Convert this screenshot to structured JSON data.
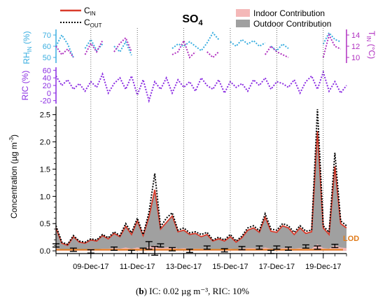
{
  "figure": {
    "title": "SO",
    "title_sub": "4",
    "caption_letter": "b",
    "caption_text": "IC: 0.02 µg m⁻³, RIC: 10%"
  },
  "legend_left": {
    "c_in_main": "C",
    "c_in_sub": "IN",
    "c_out_main": "C",
    "c_out_sub": "OUT",
    "c_in_color": "#d93b2b",
    "c_out_color": "#000000"
  },
  "legend_right": {
    "indoor_label": "Indoor Contribution",
    "outdoor_label": "Outdoor Contribution",
    "indoor_color": "#f4b8b8",
    "outdoor_color": "#a0a0a0"
  },
  "rh_panel": {
    "ylabel_main": "RH",
    "ylabel_sub": "IN",
    "ylabel_unit": " (%)",
    "ticks": [
      "70",
      "60",
      "50"
    ],
    "color": "#3aaee0",
    "right_label_main": "T",
    "right_label_sub": "IN",
    "right_label_unit": " (°C)",
    "right_ticks": [
      "14",
      "12",
      "10"
    ],
    "right_color": "#b030c0"
  },
  "ric_panel": {
    "ylabel": "RIC (%)",
    "ticks": [
      "60",
      "40",
      "20",
      "0",
      "-20"
    ],
    "color": "#8a2be2"
  },
  "main_panel": {
    "ylabel_main": "Concentration (µg m",
    "ylabel_sup": "-3",
    "ylabel_end": ")",
    "yticks": [
      "0.0",
      "0.5",
      "1.0",
      "1.5",
      "2.0",
      "2.5"
    ],
    "xticks": [
      "09-Dec-17",
      "11-Dec-17",
      "13-Dec-17",
      "15-Dec-17",
      "17-Dec-17",
      "19-Dec-17"
    ],
    "lod_label": "LOD",
    "lod_color": "#e07b1a"
  },
  "chart_data": {
    "type": "area",
    "title": "SO4",
    "xlabel": "",
    "ylabel": "Concentration (µg m-3)",
    "x_range": [
      "2017-12-07T12:00",
      "2017-12-20T00:00"
    ],
    "ylim": [
      -0.05,
      2.65
    ],
    "lod": 0.02,
    "x": [
      "2017-12-07T12:00",
      "2017-12-07T18:00",
      "2017-12-08T00:00",
      "2017-12-08T06:00",
      "2017-12-08T12:00",
      "2017-12-08T18:00",
      "2017-12-09T00:00",
      "2017-12-09T06:00",
      "2017-12-09T12:00",
      "2017-12-09T18:00",
      "2017-12-10T00:00",
      "2017-12-10T06:00",
      "2017-12-10T12:00",
      "2017-12-10T18:00",
      "2017-12-11T00:00",
      "2017-12-11T06:00",
      "2017-12-11T12:00",
      "2017-12-11T18:00",
      "2017-12-12T00:00",
      "2017-12-12T06:00",
      "2017-12-12T12:00",
      "2017-12-12T18:00",
      "2017-12-13T00:00",
      "2017-12-13T06:00",
      "2017-12-13T12:00",
      "2017-12-13T18:00",
      "2017-12-14T00:00",
      "2017-12-14T06:00",
      "2017-12-14T12:00",
      "2017-12-14T18:00",
      "2017-12-15T00:00",
      "2017-12-15T06:00",
      "2017-12-15T12:00",
      "2017-12-15T18:00",
      "2017-12-16T00:00",
      "2017-12-16T06:00",
      "2017-12-16T12:00",
      "2017-12-16T18:00",
      "2017-12-17T00:00",
      "2017-12-17T06:00",
      "2017-12-17T12:00",
      "2017-12-17T18:00",
      "2017-12-18T00:00",
      "2017-12-18T06:00",
      "2017-12-18T12:00",
      "2017-12-18T18:00",
      "2017-12-19T00:00",
      "2017-12-19T06:00",
      "2017-12-19T12:00",
      "2017-12-19T18:00",
      "2017-12-20T00:00"
    ],
    "series": [
      {
        "name": "CIN",
        "values": [
          0.42,
          0.14,
          0.1,
          0.26,
          0.16,
          0.14,
          0.2,
          0.18,
          0.28,
          0.22,
          0.32,
          0.26,
          0.45,
          0.3,
          0.55,
          0.28,
          0.62,
          1.12,
          0.4,
          0.52,
          0.64,
          0.35,
          0.38,
          0.3,
          0.32,
          0.26,
          0.3,
          0.18,
          0.22,
          0.18,
          0.26,
          0.16,
          0.24,
          0.38,
          0.42,
          0.34,
          0.62,
          0.36,
          0.34,
          0.46,
          0.42,
          0.3,
          0.42,
          0.32,
          0.35,
          2.2,
          0.42,
          0.3,
          1.55,
          0.5,
          0.42
        ]
      },
      {
        "name": "COUT",
        "values": [
          0.46,
          0.16,
          0.12,
          0.28,
          0.18,
          0.16,
          0.22,
          0.2,
          0.3,
          0.24,
          0.35,
          0.28,
          0.5,
          0.33,
          0.6,
          0.3,
          0.7,
          1.42,
          0.44,
          0.6,
          0.7,
          0.38,
          0.42,
          0.33,
          0.35,
          0.3,
          0.34,
          0.2,
          0.25,
          0.2,
          0.3,
          0.18,
          0.27,
          0.42,
          0.46,
          0.37,
          0.68,
          0.4,
          0.38,
          0.5,
          0.46,
          0.34,
          0.46,
          0.36,
          0.38,
          2.6,
          0.46,
          0.34,
          1.8,
          0.55,
          0.46
        ]
      },
      {
        "name": "Indoor Contribution",
        "values": [
          0.05,
          0.03,
          0.03,
          0.04,
          0.03,
          0.03,
          0.04,
          0.03,
          0.04,
          0.04,
          0.05,
          0.04,
          0.06,
          0.04,
          0.06,
          0.04,
          0.07,
          0.1,
          0.05,
          0.06,
          0.07,
          0.04,
          0.05,
          0.04,
          0.04,
          0.04,
          0.04,
          0.03,
          0.03,
          0.03,
          0.04,
          0.03,
          0.04,
          0.05,
          0.05,
          0.04,
          0.06,
          0.04,
          0.04,
          0.05,
          0.05,
          0.04,
          0.05,
          0.04,
          0.04,
          0.12,
          0.05,
          0.04,
          0.1,
          0.06,
          0.05
        ]
      }
    ],
    "error_bar_points": [
      {
        "x": "2017-12-07T12:00",
        "y": 0.1,
        "err": 0.03
      },
      {
        "x": "2017-12-08T06:00",
        "y": 0.02,
        "err": 0.03
      },
      {
        "x": "2017-12-09T00:00",
        "y": -0.01,
        "err": 0.03
      },
      {
        "x": "2017-12-10T00:00",
        "y": 0.04,
        "err": 0.03
      },
      {
        "x": "2017-12-10T18:00",
        "y": -0.02,
        "err": 0.03
      },
      {
        "x": "2017-12-11T06:00",
        "y": 0.0,
        "err": 0.05
      },
      {
        "x": "2017-12-11T12:00",
        "y": 0.1,
        "err": 0.07
      },
      {
        "x": "2017-12-11T18:00",
        "y": 0.0,
        "err": 0.08
      },
      {
        "x": "2017-12-12T00:00",
        "y": 0.1,
        "err": 0.03
      },
      {
        "x": "2017-12-12T12:00",
        "y": 0.03,
        "err": 0.03
      },
      {
        "x": "2017-12-13T06:00",
        "y": 0.0,
        "err": 0.03
      },
      {
        "x": "2017-12-14T00:00",
        "y": 0.06,
        "err": 0.03
      },
      {
        "x": "2017-12-14T18:00",
        "y": 0.01,
        "err": 0.03
      },
      {
        "x": "2017-12-15T12:00",
        "y": 0.05,
        "err": 0.03
      },
      {
        "x": "2017-12-16T06:00",
        "y": 0.06,
        "err": 0.03
      },
      {
        "x": "2017-12-16T18:00",
        "y": -0.02,
        "err": 0.03
      },
      {
        "x": "2017-12-17T00:00",
        "y": 0.06,
        "err": 0.03
      },
      {
        "x": "2017-12-17T12:00",
        "y": 0.04,
        "err": 0.03
      },
      {
        "x": "2017-12-18T06:00",
        "y": 0.08,
        "err": 0.03
      },
      {
        "x": "2017-12-18T18:00",
        "y": 0.06,
        "err": 0.03
      },
      {
        "x": "2017-12-19T12:00",
        "y": 0.09,
        "err": 0.03
      }
    ],
    "rh_series": {
      "name": "RHIN (%)",
      "segments": [
        {
          "x": [
            "2017-12-07T12:00",
            "2017-12-07T18:00",
            "2017-12-08T00:00",
            "2017-12-08T06:00"
          ],
          "y": [
            60,
            70,
            62,
            50
          ]
        },
        {
          "x": [
            "2017-12-08T18:00",
            "2017-12-09T00:00",
            "2017-12-09T06:00",
            "2017-12-09T12:00"
          ],
          "y": [
            58,
            66,
            56,
            62
          ]
        },
        {
          "x": [
            "2017-12-10T00:00",
            "2017-12-10T06:00",
            "2017-12-10T12:00",
            "2017-12-10T18:00"
          ],
          "y": [
            60,
            55,
            64,
            52
          ]
        },
        {
          "x": [
            "2017-12-12T12:00",
            "2017-12-12T18:00",
            "2017-12-13T00:00",
            "2017-12-13T06:00",
            "2017-12-13T12:00",
            "2017-12-13T18:00",
            "2017-12-14T00:00",
            "2017-12-14T06:00",
            "2017-12-14T12:00"
          ],
          "y": [
            58,
            62,
            60,
            64,
            60,
            56,
            63,
            72,
            66
          ]
        },
        {
          "x": [
            "2017-12-15T00:00",
            "2017-12-15T06:00",
            "2017-12-15T12:00",
            "2017-12-15T18:00",
            "2017-12-16T00:00",
            "2017-12-16T06:00",
            "2017-12-16T12:00"
          ],
          "y": [
            64,
            60,
            66,
            62,
            65,
            60,
            63
          ]
        },
        {
          "x": [
            "2017-12-16T18:00",
            "2017-12-17T00:00",
            "2017-12-17T06:00",
            "2017-12-17T12:00"
          ],
          "y": [
            60,
            56,
            62,
            58
          ]
        },
        {
          "x": [
            "2017-12-19T00:00",
            "2017-12-19T06:00",
            "2017-12-19T12:00",
            "2017-12-19T18:00"
          ],
          "y": [
            62,
            72,
            66,
            64
          ]
        }
      ]
    },
    "t_series": {
      "name": "TIN (°C)",
      "segments": [
        {
          "x": [
            "2017-12-07T12:00",
            "2017-12-07T18:00",
            "2017-12-08T00:00",
            "2017-12-08T06:00"
          ],
          "y": [
            12,
            10.5,
            11.5,
            10
          ]
        },
        {
          "x": [
            "2017-12-08T18:00",
            "2017-12-09T00:00",
            "2017-12-09T06:00",
            "2017-12-09T12:00"
          ],
          "y": [
            10.5,
            12.5,
            11,
            13
          ]
        },
        {
          "x": [
            "2017-12-10T00:00",
            "2017-12-10T06:00",
            "2017-12-10T12:00",
            "2017-12-10T18:00"
          ],
          "y": [
            11,
            12.5,
            13.5,
            11
          ]
        },
        {
          "x": [
            "2017-12-12T12:00",
            "2017-12-12T18:00",
            "2017-12-13T00:00",
            "2017-12-13T06:00",
            "2017-12-13T12:00"
          ],
          "y": [
            10.5,
            11,
            13,
            10,
            11
          ]
        },
        {
          "x": [
            "2017-12-14T00:00",
            "2017-12-14T06:00",
            "2017-12-14T12:00"
          ],
          "y": [
            11,
            10,
            11
          ]
        },
        {
          "x": [
            "2017-12-16T12:00",
            "2017-12-16T18:00",
            "2017-12-17T00:00",
            "2017-12-17T06:00",
            "2017-12-17T12:00"
          ],
          "y": [
            10.5,
            12,
            11,
            10.5,
            10
          ]
        },
        {
          "x": [
            "2017-12-19T00:00",
            "2017-12-19T06:00",
            "2017-12-19T12:00",
            "2017-12-19T18:00"
          ],
          "y": [
            10,
            14,
            12,
            11.5
          ]
        }
      ]
    },
    "ric_series": {
      "name": "RIC (%)",
      "x": [
        "2017-12-07T12:00",
        "2017-12-07T18:00",
        "2017-12-08T00:00",
        "2017-12-08T06:00",
        "2017-12-08T12:00",
        "2017-12-08T18:00",
        "2017-12-09T00:00",
        "2017-12-09T06:00",
        "2017-12-09T12:00",
        "2017-12-09T18:00",
        "2017-12-10T00:00",
        "2017-12-10T06:00",
        "2017-12-10T12:00",
        "2017-12-10T18:00",
        "2017-12-11T00:00",
        "2017-12-11T06:00",
        "2017-12-11T12:00",
        "2017-12-11T18:00",
        "2017-12-12T00:00",
        "2017-12-12T06:00",
        "2017-12-12T12:00",
        "2017-12-12T18:00",
        "2017-12-13T00:00",
        "2017-12-13T06:00",
        "2017-12-13T12:00",
        "2017-12-13T18:00",
        "2017-12-14T00:00",
        "2017-12-14T06:00",
        "2017-12-14T12:00",
        "2017-12-14T18:00",
        "2017-12-15T00:00",
        "2017-12-15T06:00",
        "2017-12-15T12:00",
        "2017-12-15T18:00",
        "2017-12-16T00:00",
        "2017-12-16T06:00",
        "2017-12-16T12:00",
        "2017-12-16T18:00",
        "2017-12-17T00:00",
        "2017-12-17T06:00",
        "2017-12-17T12:00",
        "2017-12-17T18:00",
        "2017-12-18T00:00",
        "2017-12-18T06:00",
        "2017-12-18T12:00",
        "2017-12-18T18:00",
        "2017-12-19T00:00",
        "2017-12-19T06:00",
        "2017-12-19T12:00",
        "2017-12-19T18:00",
        "2017-12-20T00:00"
      ],
      "y": [
        45,
        20,
        35,
        10,
        25,
        5,
        30,
        15,
        50,
        0,
        25,
        40,
        10,
        45,
        -5,
        35,
        -20,
        30,
        10,
        40,
        0,
        35,
        15,
        30,
        5,
        40,
        20,
        10,
        35,
        0,
        30,
        15,
        25,
        5,
        35,
        20,
        40,
        10,
        30,
        25,
        15,
        35,
        0,
        30,
        45,
        10,
        55,
        5,
        30,
        0,
        20
      ]
    }
  }
}
